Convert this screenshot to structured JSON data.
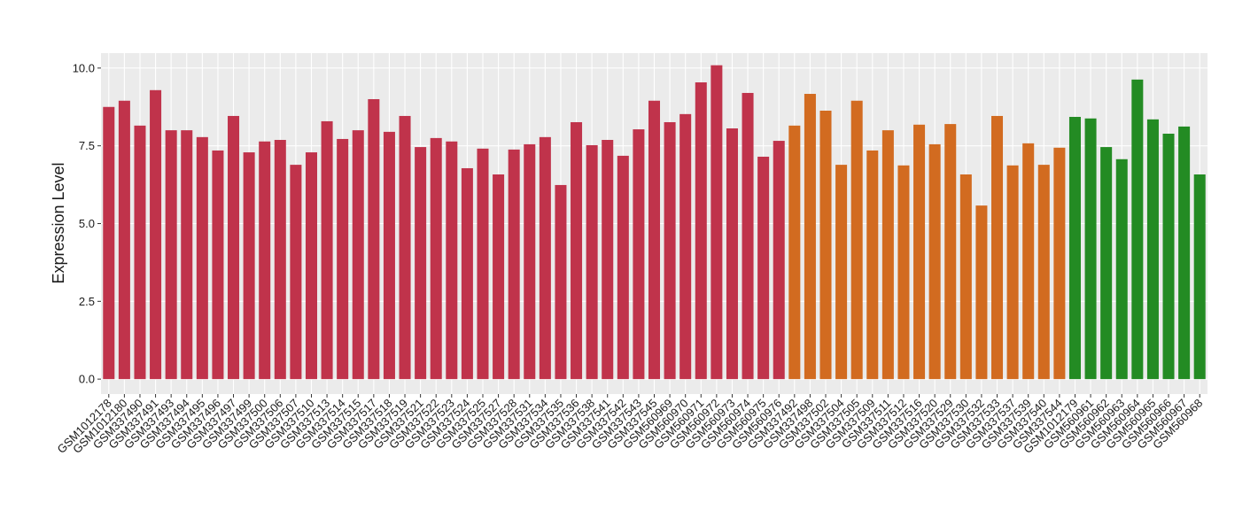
{
  "chart_data": {
    "type": "bar",
    "y_label": "Expression Level",
    "categories": [
      "GSM1012178",
      "GSM1012180",
      "GSM337490",
      "GSM337491",
      "GSM337493",
      "GSM337494",
      "GSM337495",
      "GSM337496",
      "GSM337497",
      "GSM337499",
      "GSM337500",
      "GSM337506",
      "GSM337507",
      "GSM337510",
      "GSM337513",
      "GSM337514",
      "GSM337515",
      "GSM337517",
      "GSM337518",
      "GSM337519",
      "GSM337521",
      "GSM337522",
      "GSM337523",
      "GSM337524",
      "GSM337525",
      "GSM337527",
      "GSM337528",
      "GSM337531",
      "GSM337534",
      "GSM337535",
      "GSM337536",
      "GSM337538",
      "GSM337541",
      "GSM337542",
      "GSM337543",
      "GSM337545",
      "GSM560969",
      "GSM560970",
      "GSM560971",
      "GSM560972",
      "GSM560973",
      "GSM560974",
      "GSM560975",
      "GSM560976",
      "GSM337492",
      "GSM337498",
      "GSM337502",
      "GSM337504",
      "GSM337505",
      "GSM337509",
      "GSM337511",
      "GSM337512",
      "GSM337516",
      "GSM337520",
      "GSM337529",
      "GSM337530",
      "GSM337532",
      "GSM337533",
      "GSM337537",
      "GSM337539",
      "GSM337540",
      "GSM337544",
      "GSM1012179",
      "GSM560961",
      "GSM560962",
      "GSM560963",
      "GSM560964",
      "GSM560965",
      "GSM560966",
      "GSM560967",
      "GSM560968"
    ],
    "series": [
      {
        "color": "#c0334b",
        "values": [
          8.75,
          8.95,
          8.15,
          9.29,
          8.0,
          8.0,
          7.78,
          7.35,
          8.46,
          7.29,
          7.64,
          7.69,
          6.89,
          7.29,
          8.29,
          7.72,
          8.0,
          9.0,
          7.95,
          8.46,
          7.46,
          7.75,
          7.64,
          6.78,
          7.41,
          6.58,
          7.38,
          7.55,
          7.78,
          6.24,
          8.26,
          7.52,
          7.69,
          7.18,
          8.03,
          8.95,
          8.26,
          8.52,
          9.54,
          10.09,
          8.06,
          9.2,
          7.15,
          7.66,
          null,
          null,
          null,
          null,
          null,
          null,
          null,
          null,
          null,
          null,
          null,
          null,
          null,
          null,
          null,
          null,
          null,
          null,
          null,
          null,
          null,
          null,
          null,
          null,
          null,
          null,
          null
        ]
      },
      {
        "color": "#d26b20",
        "values": [
          null,
          null,
          null,
          null,
          null,
          null,
          null,
          null,
          null,
          null,
          null,
          null,
          null,
          null,
          null,
          null,
          null,
          null,
          null,
          null,
          null,
          null,
          null,
          null,
          null,
          null,
          null,
          null,
          null,
          null,
          null,
          null,
          null,
          null,
          null,
          null,
          null,
          null,
          null,
          null,
          null,
          null,
          null,
          null,
          8.15,
          9.17,
          8.63,
          6.89,
          8.95,
          7.35,
          8.0,
          6.87,
          8.18,
          7.55,
          8.2,
          6.58,
          5.58,
          8.46,
          6.87,
          7.58,
          6.89,
          7.44,
          null,
          null,
          null,
          null,
          null,
          null,
          null,
          null,
          null
        ]
      },
      {
        "color": "#238b23",
        "values": [
          null,
          null,
          null,
          null,
          null,
          null,
          null,
          null,
          null,
          null,
          null,
          null,
          null,
          null,
          null,
          null,
          null,
          null,
          null,
          null,
          null,
          null,
          null,
          null,
          null,
          null,
          null,
          null,
          null,
          null,
          null,
          null,
          null,
          null,
          null,
          null,
          null,
          null,
          null,
          null,
          null,
          null,
          null,
          null,
          null,
          null,
          null,
          null,
          null,
          null,
          null,
          null,
          null,
          null,
          null,
          null,
          null,
          null,
          null,
          null,
          null,
          null,
          8.43,
          8.38,
          7.46,
          7.07,
          9.63,
          8.35,
          7.89,
          8.12,
          6.58
        ]
      }
    ],
    "ylim": [
      -0.48,
      10.48
    ],
    "yticks": [
      {
        "value": 0,
        "label": "0.0"
      },
      {
        "value": 2.5,
        "label": "2.5"
      },
      {
        "value": 5,
        "label": "5.0"
      },
      {
        "value": 7.5,
        "label": "7.5"
      },
      {
        "value": 10,
        "label": "10.0"
      }
    ],
    "grid": true
  }
}
